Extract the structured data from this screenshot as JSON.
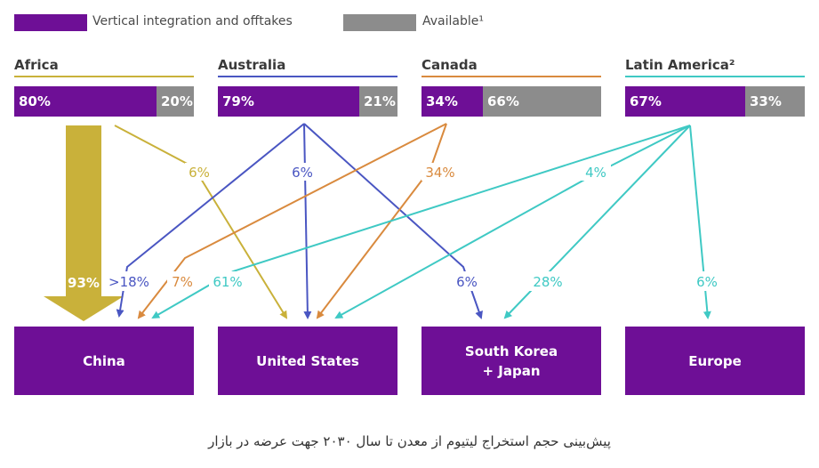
{
  "legend": {
    "vertical_label": "Vertical integration and offtakes",
    "available_label": "Available¹",
    "vertical_color": "#6e0f96",
    "available_color": "#8c8c8c"
  },
  "regions": [
    {
      "label": "Africa",
      "line_color": "#c9b13a",
      "vertical": "80%",
      "available": "20%",
      "vertical_value": 80
    },
    {
      "label": "Australia",
      "line_color": "#4a56c2",
      "vertical": "79%",
      "available": "21%",
      "vertical_value": 79
    },
    {
      "label": "Canada",
      "line_color": "#d98a3e",
      "vertical": "34%",
      "available": "66%",
      "vertical_value": 34
    },
    {
      "label": "Latin America²",
      "line_color": "#3fc9c4",
      "vertical": "67%",
      "available": "33%",
      "vertical_value": 67
    }
  ],
  "destinations": [
    {
      "label": "China"
    },
    {
      "label": "United States"
    },
    {
      "label": "South Korea\n+ Japan"
    },
    {
      "label": "Europe"
    }
  ],
  "flows": {
    "africa_china": "93%",
    "africa_us": "6%",
    "australia_china": ">18%",
    "australia_us": "6%",
    "australia_korea": "6%",
    "canada_china": "7%",
    "canada_us": "34%",
    "latam_china": "61%",
    "latam_us": "4%",
    "latam_korea": "28%",
    "latam_europe": "6%"
  },
  "caption": "پیش‌بینی حجم استخراج لیتیوم از معدن تا سال ۲۰۳۰ جهت عرضه در بازار"
}
